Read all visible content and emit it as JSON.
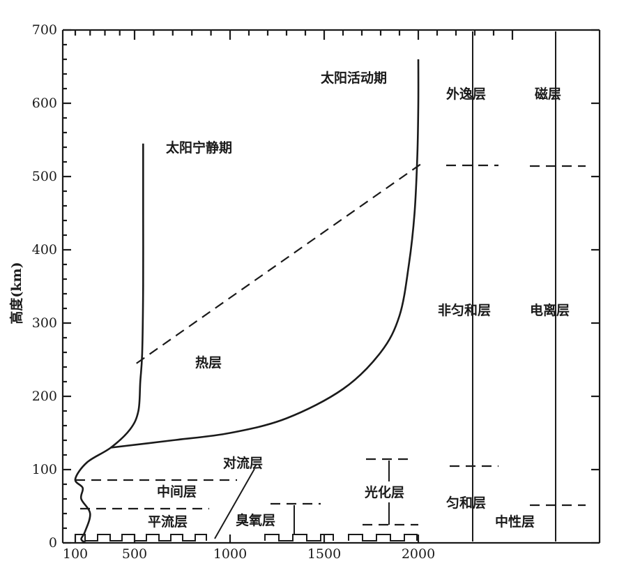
{
  "chart_data": {
    "type": "line",
    "xlabel": "",
    "ylabel": "高度(km)",
    "xlim": [
      100,
      2500
    ],
    "ylim": [
      0,
      700
    ],
    "x_ticks": [
      "100",
      "500",
      "1000",
      "1500",
      "2000"
    ],
    "y_ticks": [
      "0",
      "100",
      "200",
      "300",
      "400",
      "500",
      "600",
      "700"
    ],
    "series": [
      {
        "name": "太阳宁静期",
        "points": [
          [
            170,
            0
          ],
          [
            140,
            5
          ],
          [
            165,
            15
          ],
          [
            200,
            40
          ],
          [
            140,
            60
          ],
          [
            150,
            75
          ],
          [
            100,
            87
          ],
          [
            180,
            110
          ],
          [
            340,
            130
          ],
          [
            470,
            155
          ],
          [
            520,
            180
          ],
          [
            530,
            220
          ],
          [
            540,
            260
          ],
          [
            545,
            350
          ],
          [
            545,
            450
          ],
          [
            545,
            545
          ]
        ]
      },
      {
        "name": "太阳活动期",
        "points": [
          [
            340,
            130
          ],
          [
            700,
            140
          ],
          [
            1000,
            150
          ],
          [
            1300,
            170
          ],
          [
            1600,
            210
          ],
          [
            1800,
            260
          ],
          [
            1900,
            310
          ],
          [
            1950,
            380
          ],
          [
            1980,
            450
          ],
          [
            1995,
            530
          ],
          [
            2000,
            600
          ],
          [
            2000,
            660
          ]
        ]
      }
    ],
    "boundary": {
      "style": "dashed",
      "points": [
        [
          510,
          245
        ],
        [
          2030,
          520
        ]
      ]
    },
    "region_labels": [
      "太阳活动期",
      "太阳宁静期",
      "热层",
      "对流层",
      "中间层",
      "平流层",
      "臭氧层",
      "光化层",
      "外逸层",
      "磁层",
      "非匀和层",
      "电离层",
      "匀和层",
      "中性层"
    ]
  }
}
